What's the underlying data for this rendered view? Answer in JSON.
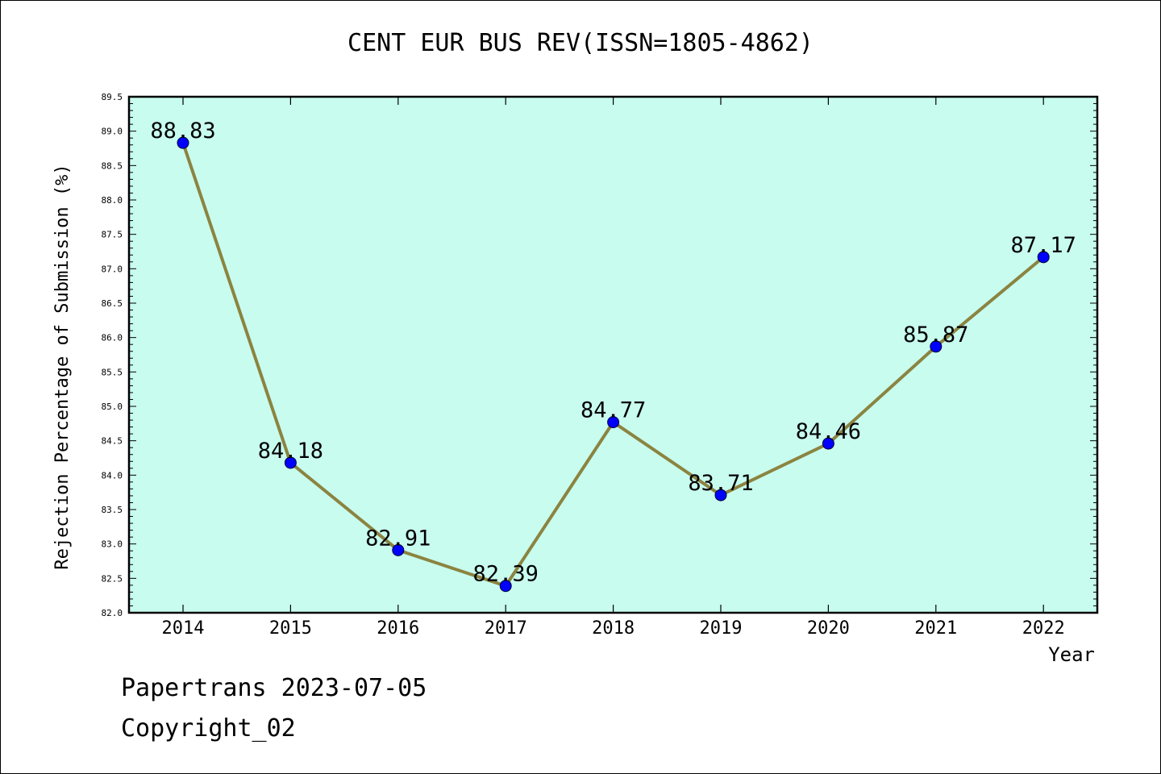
{
  "chart_data": {
    "type": "line",
    "title": "CENT EUR BUS REV(ISSN=1805-4862)",
    "xlabel": "Year",
    "ylabel": "Rejection Percentage of Submission (%)",
    "categories": [
      "2014",
      "2015",
      "2016",
      "2017",
      "2018",
      "2019",
      "2020",
      "2021",
      "2022"
    ],
    "values": [
      88.83,
      84.18,
      82.91,
      82.39,
      84.77,
      83.71,
      84.46,
      85.87,
      87.17
    ],
    "data_labels": [
      "88.83",
      "84.18",
      "82.91",
      "82.39",
      "84.77",
      "83.71",
      "84.46",
      "85.87",
      "87.17"
    ],
    "ylim": [
      82.0,
      89.5
    ],
    "yticks": [
      "82.0",
      "82.5",
      "83.0",
      "83.5",
      "84.0",
      "84.5",
      "85.0",
      "85.5",
      "86.0",
      "86.5",
      "87.0",
      "87.5",
      "88.0",
      "88.5",
      "89.0",
      "89.5"
    ],
    "grid": false,
    "colors": {
      "plot_background": "#c8fcef",
      "line": "#8b8440",
      "marker": "#0000ff"
    }
  },
  "footer": {
    "date_text": "Papertrans 2023-07-05",
    "copyright_text": "Copyright_02"
  }
}
